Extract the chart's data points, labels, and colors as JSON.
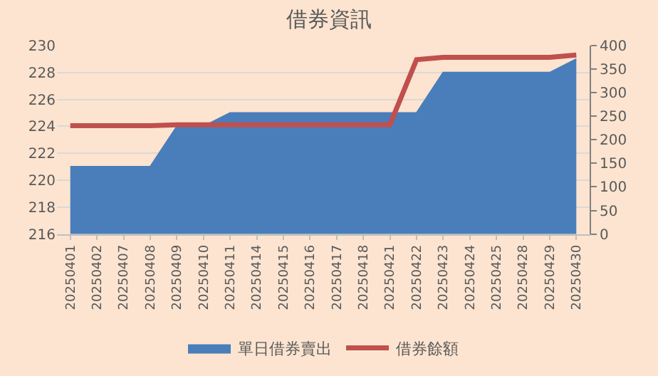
{
  "chart_data": {
    "type": "area",
    "title": "借券資訊",
    "categories": [
      "20250401",
      "20250402",
      "20250407",
      "20250408",
      "20250409",
      "20250410",
      "20250411",
      "20250414",
      "20250415",
      "20250416",
      "20250417",
      "20250418",
      "20250421",
      "20250422",
      "20250423",
      "20250424",
      "20250425",
      "20250428",
      "20250429",
      "20250430"
    ],
    "series": [
      {
        "name": "單日借券賣出",
        "color": "#4a7ebb",
        "values": [
          221,
          221,
          221,
          221,
          224,
          224,
          225,
          225,
          225,
          225,
          225,
          225,
          225,
          225,
          228,
          228,
          228,
          228,
          228,
          229
        ]
      },
      {
        "name": "借券餘額",
        "type": "line",
        "axis": "y2",
        "color": "#c0504d",
        "line_style": "solid",
        "values": [
          230,
          230,
          230,
          230,
          232,
          232,
          232,
          232,
          232,
          232,
          232,
          232,
          232,
          370,
          375,
          375,
          375,
          375,
          375,
          380
        ]
      }
    ],
    "ylim": [
      216,
      230
    ],
    "yticks": [
      216,
      218,
      220,
      222,
      224,
      226,
      228,
      230
    ],
    "y2lim": [
      0,
      400
    ],
    "y2ticks": [
      0,
      50,
      100,
      150,
      200,
      250,
      300,
      350,
      400
    ],
    "grid": "y",
    "legend": "bottom",
    "marker": "none"
  }
}
